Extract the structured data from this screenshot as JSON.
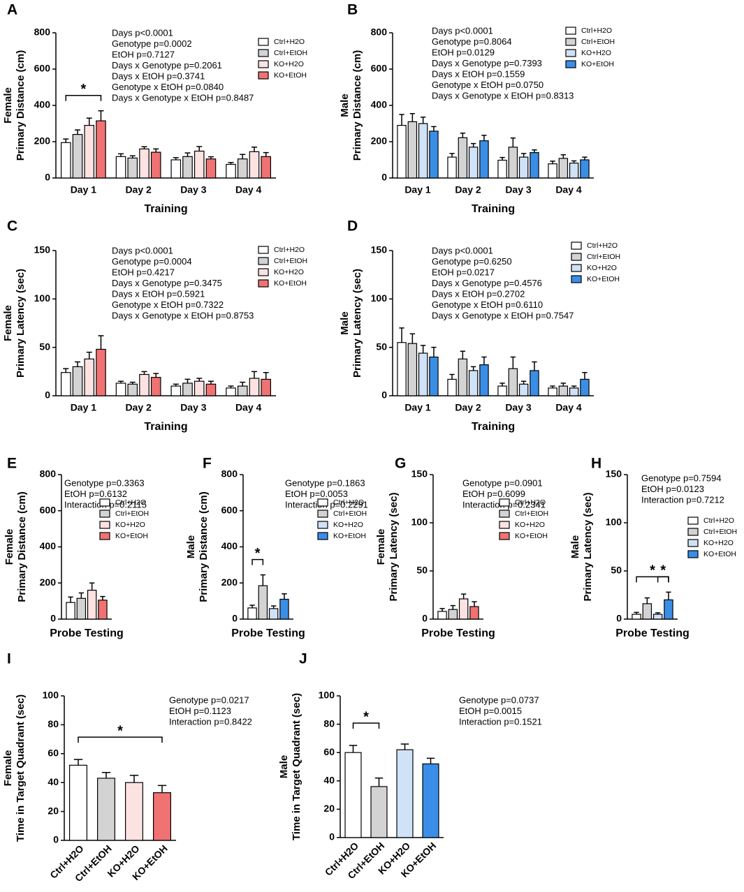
{
  "chart_data": [
    {
      "type": "grouped_bar",
      "panel": "A",
      "ylabel": [
        "Female",
        "Primary Distance (cm)"
      ],
      "xlabel": "Training",
      "categories": [
        "Day 1",
        "Day 2",
        "Day 3",
        "Day 4"
      ],
      "ylim": [
        0,
        800
      ],
      "yticks": [
        0,
        200,
        400,
        600,
        800
      ],
      "series": [
        {
          "name": "Ctrl+H2O",
          "color": "#ffffff",
          "values": [
            195,
            118,
            100,
            75
          ],
          "errors": [
            20,
            15,
            12,
            10
          ]
        },
        {
          "name": "Ctrl+EtOH",
          "color": "#d3d3d3",
          "values": [
            240,
            110,
            118,
            105
          ],
          "errors": [
            25,
            12,
            20,
            25
          ]
        },
        {
          "name": "KO+H2O",
          "color": "#fde2e2",
          "values": [
            290,
            160,
            148,
            145
          ],
          "errors": [
            40,
            12,
            25,
            25
          ]
        },
        {
          "name": "KO+EtOH",
          "color": "#f07272",
          "values": [
            315,
            142,
            105,
            118
          ],
          "errors": [
            55,
            18,
            12,
            22
          ]
        }
      ],
      "stats": [
        {
          "text": "Days p<0.0001",
          "color": "#ff0000"
        },
        {
          "text": "Genotype p=0.0002",
          "color": "#ff0000"
        },
        {
          "text": "EtOH p=0.7127"
        },
        {
          "text": "Days x Genotype p=0.2061"
        },
        {
          "text": "Days x EtOH p=0.3741"
        },
        {
          "text": "Genotype x EtOH p=0.0840"
        },
        {
          "text": "Days x Genotype x EtOH p=0.8487"
        }
      ],
      "brackets": [
        {
          "label": "*",
          "category": 0,
          "from": 0,
          "to": 3
        }
      ]
    },
    {
      "type": "grouped_bar",
      "panel": "B",
      "ylabel": [
        "Male",
        "Primary Distance (cm)"
      ],
      "xlabel": "Training",
      "categories": [
        "Day 1",
        "Day 2",
        "Day 3",
        "Day 4"
      ],
      "ylim": [
        0,
        800
      ],
      "yticks": [
        0,
        200,
        400,
        600,
        800
      ],
      "series": [
        {
          "name": "Ctrl+H2O",
          "color": "#ffffff",
          "values": [
            290,
            115,
            98,
            78
          ],
          "errors": [
            60,
            20,
            15,
            15
          ]
        },
        {
          "name": "Ctrl+EtOH",
          "color": "#d3d3d3",
          "values": [
            310,
            222,
            170,
            108
          ],
          "errors": [
            45,
            25,
            50,
            20
          ]
        },
        {
          "name": "KO+H2O",
          "color": "#cfe2f7",
          "values": [
            300,
            170,
            115,
            82
          ],
          "errors": [
            35,
            20,
            20,
            12
          ]
        },
        {
          "name": "KO+EtOH",
          "color": "#3a8ee6",
          "values": [
            258,
            205,
            140,
            100
          ],
          "errors": [
            25,
            30,
            15,
            15
          ]
        }
      ],
      "stats": [
        {
          "text": "Days p<0.0001",
          "color": "#ff0000"
        },
        {
          "text": "Genotype p=0.8064"
        },
        {
          "text": "EtOH p=0.0129",
          "color": "#ff0000"
        },
        {
          "text": "Days x Genotype p=0.7393"
        },
        {
          "text": "Days x EtOH p=0.1559"
        },
        {
          "text": "Genotype x EtOH p=0.0750"
        },
        {
          "text": "Days x Genotype x EtOH p=0.8313"
        }
      ],
      "brackets": []
    },
    {
      "type": "grouped_bar",
      "panel": "C",
      "ylabel": [
        "Female",
        "Primary Latency (sec)"
      ],
      "xlabel": "Training",
      "categories": [
        "Day 1",
        "Day 2",
        "Day 3",
        "Day 4"
      ],
      "ylim": [
        0,
        150
      ],
      "yticks": [
        0,
        50,
        100,
        150
      ],
      "series": [
        {
          "name": "Ctrl+H2O",
          "color": "#ffffff",
          "values": [
            24,
            13,
            10,
            8
          ],
          "errors": [
            4,
            2,
            2,
            2
          ]
        },
        {
          "name": "Ctrl+EtOH",
          "color": "#d3d3d3",
          "values": [
            30,
            12,
            13,
            10
          ],
          "errors": [
            5,
            2,
            4,
            4
          ]
        },
        {
          "name": "KO+H2O",
          "color": "#fde2e2",
          "values": [
            38,
            22,
            15,
            18
          ],
          "errors": [
            7,
            3,
            3,
            7
          ]
        },
        {
          "name": "KO+EtOH",
          "color": "#f07272",
          "values": [
            48,
            19,
            12,
            17
          ],
          "errors": [
            14,
            4,
            3,
            7
          ]
        }
      ],
      "stats": [
        {
          "text": "Days p<0.0001",
          "color": "#ff0000"
        },
        {
          "text": "Genotype p=0.0004",
          "color": "#ff0000"
        },
        {
          "text": "EtOH p=0.4217"
        },
        {
          "text": "Days x Genotype p=0.3475"
        },
        {
          "text": "Days x EtOH p=0.5921"
        },
        {
          "text": "Genotype x EtOH p=0.7322"
        },
        {
          "text": "Days x Genotype x EtOH p=0.8753"
        }
      ],
      "brackets": []
    },
    {
      "type": "grouped_bar",
      "panel": "D",
      "ylabel": [
        "Male",
        "Primary Latency (sec)"
      ],
      "xlabel": "Training",
      "categories": [
        "Day 1",
        "Day 2",
        "Day 3",
        "Day 4"
      ],
      "ylim": [
        0,
        150
      ],
      "yticks": [
        0,
        50,
        100,
        150
      ],
      "series": [
        {
          "name": "Ctrl+H2O",
          "color": "#ffffff",
          "values": [
            55,
            17,
            10,
            8
          ],
          "errors": [
            15,
            5,
            3,
            2
          ]
        },
        {
          "name": "Ctrl+EtOH",
          "color": "#d3d3d3",
          "values": [
            54,
            38,
            28,
            10
          ],
          "errors": [
            10,
            8,
            12,
            3
          ]
        },
        {
          "name": "KO+H2O",
          "color": "#cfe2f7",
          "values": [
            44,
            26,
            12,
            8
          ],
          "errors": [
            8,
            4,
            3,
            2
          ]
        },
        {
          "name": "KO+EtOH",
          "color": "#3a8ee6",
          "values": [
            40,
            32,
            26,
            17
          ],
          "errors": [
            10,
            8,
            9,
            7
          ]
        }
      ],
      "stats": [
        {
          "text": "Days p<0.0001",
          "color": "#ff0000"
        },
        {
          "text": "Genotype p=0.6250"
        },
        {
          "text": "EtOH p=0.0217",
          "color": "#ff0000"
        },
        {
          "text": "Days x Genotype p=0.4576"
        },
        {
          "text": "Days x EtOH p=0.2702"
        },
        {
          "text": "Genotype x EtOH p=0.6110"
        },
        {
          "text": "Days x Genotype x EtOH p=0.7547"
        }
      ],
      "brackets": []
    },
    {
      "type": "grouped_bar",
      "panel": "E",
      "ylabel": [
        "Female",
        "Primary Distance (cm)"
      ],
      "xlabel": "Probe Testing",
      "categories": [
        null
      ],
      "ylim": [
        0,
        800
      ],
      "yticks": [
        0,
        200,
        400,
        600,
        800
      ],
      "series": [
        {
          "name": "Ctrl+H2O",
          "color": "#ffffff",
          "values": [
            92
          ],
          "errors": [
            30
          ]
        },
        {
          "name": "Ctrl+EtOH",
          "color": "#d3d3d3",
          "values": [
            115
          ],
          "errors": [
            30
          ]
        },
        {
          "name": "KO+H2O",
          "color": "#fde2e2",
          "values": [
            160
          ],
          "errors": [
            40
          ]
        },
        {
          "name": "KO+EtOH",
          "color": "#f07272",
          "values": [
            105
          ],
          "errors": [
            20
          ]
        }
      ],
      "stats": [
        {
          "text": "Genotype p=0.3363"
        },
        {
          "text": "EtOH p=0.6132"
        },
        {
          "text": "Interaction p=0.2115"
        }
      ],
      "brackets": []
    },
    {
      "type": "grouped_bar",
      "panel": "F",
      "ylabel": [
        "Male",
        "Primary Distance (cm)"
      ],
      "xlabel": "Probe Testing",
      "categories": [
        null
      ],
      "ylim": [
        0,
        800
      ],
      "yticks": [
        0,
        200,
        400,
        600,
        800
      ],
      "series": [
        {
          "name": "Ctrl+H2O",
          "color": "#ffffff",
          "values": [
            62
          ],
          "errors": [
            15
          ]
        },
        {
          "name": "Ctrl+EtOH",
          "color": "#d3d3d3",
          "values": [
            185
          ],
          "errors": [
            60
          ]
        },
        {
          "name": "KO+H2O",
          "color": "#cfe2f7",
          "values": [
            58
          ],
          "errors": [
            15
          ]
        },
        {
          "name": "KO+EtOH",
          "color": "#3a8ee6",
          "values": [
            110
          ],
          "errors": [
            30
          ]
        }
      ],
      "stats": [
        {
          "text": "Genotype p=0.1863"
        },
        {
          "text": "EtOH p=0.0053",
          "color": "#ff0000"
        },
        {
          "text": "Interaction p=0.2291"
        }
      ],
      "brackets": [
        {
          "label": "*",
          "category": 0,
          "from": 0,
          "to": 1
        }
      ]
    },
    {
      "type": "grouped_bar",
      "panel": "G",
      "ylabel": [
        "Female",
        "Primary Latency (sec)"
      ],
      "xlabel": "Probe Testing",
      "categories": [
        null
      ],
      "ylim": [
        0,
        150
      ],
      "yticks": [
        0,
        50,
        100,
        150
      ],
      "series": [
        {
          "name": "Ctrl+H2O",
          "color": "#ffffff",
          "values": [
            8
          ],
          "errors": [
            3
          ]
        },
        {
          "name": "Ctrl+EtOH",
          "color": "#d3d3d3",
          "values": [
            10
          ],
          "errors": [
            4
          ]
        },
        {
          "name": "KO+H2O",
          "color": "#fde2e2",
          "values": [
            21
          ],
          "errors": [
            5
          ]
        },
        {
          "name": "KO+EtOH",
          "color": "#f07272",
          "values": [
            13
          ],
          "errors": [
            5
          ]
        }
      ],
      "stats": [
        {
          "text": "Genotype p=0.0901"
        },
        {
          "text": "EtOH p=0.6099"
        },
        {
          "text": "Interaction p=0.2341"
        }
      ],
      "brackets": []
    },
    {
      "type": "grouped_bar",
      "panel": "H",
      "ylabel": [
        "Male",
        "Primary Latency (sec)"
      ],
      "xlabel": "Probe Testing",
      "categories": [
        null
      ],
      "ylim": [
        0,
        150
      ],
      "yticks": [
        0,
        50,
        100,
        150
      ],
      "series": [
        {
          "name": "Ctrl+H2O",
          "color": "#ffffff",
          "values": [
            5
          ],
          "errors": [
            2
          ]
        },
        {
          "name": "Ctrl+EtOH",
          "color": "#d3d3d3",
          "values": [
            16
          ],
          "errors": [
            6
          ]
        },
        {
          "name": "KO+H2O",
          "color": "#cfe2f7",
          "values": [
            5
          ],
          "errors": [
            1.5
          ]
        },
        {
          "name": "KO+EtOH",
          "color": "#3a8ee6",
          "values": [
            20
          ],
          "errors": [
            8
          ]
        }
      ],
      "stats": [
        {
          "text": "Genotype p=0.7594"
        },
        {
          "text": "EtOH p=0.0123",
          "color": "#ff0000"
        },
        {
          "text": "Interaction p=0.7212"
        }
      ],
      "brackets": [
        {
          "label": "*",
          "category": 0,
          "from": 0,
          "to": 3
        },
        {
          "label": "*",
          "category": 0,
          "from": 2,
          "to": 3
        }
      ]
    },
    {
      "type": "bar",
      "panel": "I",
      "ylabel": [
        "Female",
        "Time in Target Quadrant (sec)"
      ],
      "categories": [
        "Ctrl+H2O",
        "Ctrl+EtOH",
        "KO+H2O",
        "KO+EtOH"
      ],
      "values": [
        52,
        43,
        40,
        33
      ],
      "errors": [
        4,
        4,
        5,
        5
      ],
      "colors": [
        "#ffffff",
        "#d3d3d3",
        "#fde2e2",
        "#f07272"
      ],
      "ylim": [
        0,
        100
      ],
      "yticks": [
        0,
        20,
        40,
        60,
        80,
        100
      ],
      "stats": [
        {
          "text": "Genotype p=0.0217",
          "color": "#ff0000"
        },
        {
          "text": "EtOH p=0.1123"
        },
        {
          "text": "Interaction p=0.8422"
        }
      ],
      "brackets": [
        {
          "label": "*",
          "from": 0,
          "to": 3
        }
      ]
    },
    {
      "type": "bar",
      "panel": "J",
      "ylabel": [
        "Male",
        "Time in Target Quadrant (sec)"
      ],
      "categories": [
        "Ctrl+H2O",
        "Ctrl+EtOH",
        "KO+H2O",
        "KO+EtOH"
      ],
      "values": [
        60,
        36,
        62,
        52
      ],
      "errors": [
        5,
        6,
        4,
        4
      ],
      "colors": [
        "#ffffff",
        "#d3d3d3",
        "#cfe2f7",
        "#3a8ee6"
      ],
      "ylim": [
        0,
        100
      ],
      "yticks": [
        0,
        20,
        40,
        60,
        80,
        100
      ],
      "stats": [
        {
          "text": "Genotype p=0.0737"
        },
        {
          "text": "EtOH p=0.0015",
          "color": "#ff0000"
        },
        {
          "text": "Interaction p=0.1521"
        }
      ],
      "brackets": [
        {
          "label": "*",
          "from": 0,
          "to": 1
        }
      ]
    }
  ]
}
